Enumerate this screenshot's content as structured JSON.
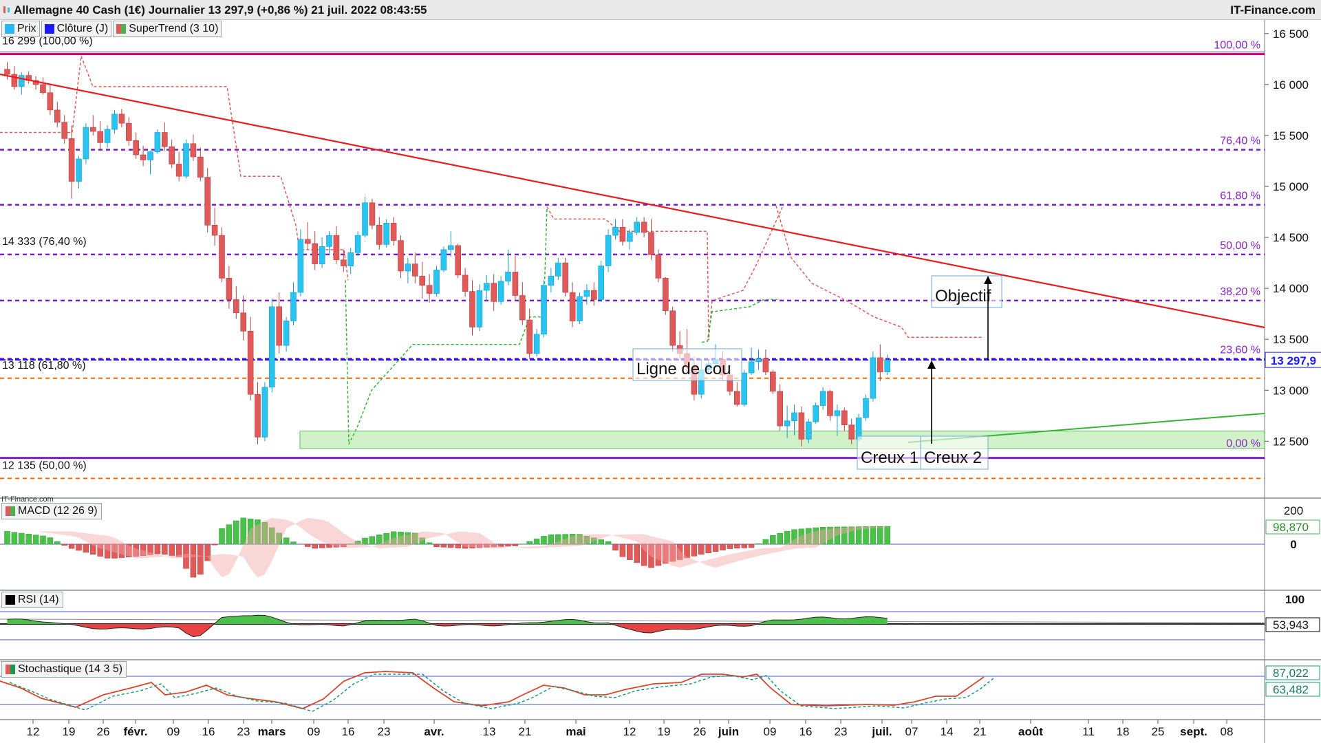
{
  "header": {
    "title": "Allemagne 40 Cash (1€) Journalier 13 297,9 (+0,86 %) 21 juil. 2022 08:43:55",
    "brand": "IT-Finance.com",
    "watermark": "IT-Finance.com"
  },
  "legend": [
    {
      "label": "Prix",
      "color": "#29b6f6"
    },
    {
      "label": "Clôture (J)",
      "color": "#1a1aff"
    },
    {
      "label": "SuperTrend (3 10)",
      "color": "#4caf50"
    }
  ],
  "colors": {
    "up": "#29c4f0",
    "down": "#e05a5a",
    "trend": "#e81c1c",
    "support": "#33b533",
    "fib": "#7a1fc0",
    "orange": "#ff6a00",
    "close": "#1a1aff",
    "magenta": "#d4006a",
    "zone": "#c9f0c0"
  },
  "chart_data": [
    {
      "type": "candlestick",
      "ylim": [
        12050,
        16600
      ],
      "y_ticks": [
        "16 500",
        "16 000",
        "15 500",
        "15 000",
        "14 500",
        "14 000",
        "13 500",
        "13 000",
        "12 500"
      ],
      "x_ticks": [
        "12",
        "19",
        "26",
        "févr.",
        "09",
        "16",
        "23",
        "mars",
        "09",
        "16",
        "23",
        "avr.",
        "13",
        "21",
        "mai",
        "12",
        "19",
        "26",
        "juin",
        "09",
        "16",
        "23",
        "juil.",
        "07",
        "14",
        "21",
        "août",
        "11",
        "18",
        "25",
        "sept.",
        "08"
      ],
      "last_price": "13 297,9",
      "levels": [
        {
          "label_left": "16 299 (100,00 %)",
          "value": 16299
        },
        {
          "label_left": "14 333 (76,40 %)",
          "value": 14333
        },
        {
          "label_left": "13 118 (61,80 %)",
          "value": 13118
        },
        {
          "label_left": "12 135 (50,00 %)",
          "value": 12135
        }
      ],
      "fib_levels": [
        {
          "label": "100,00 %",
          "value": 16299
        },
        {
          "label": "76,40 %",
          "value": 15360
        },
        {
          "label": "61,80 %",
          "value": 14820
        },
        {
          "label": "50,00 %",
          "value": 14333
        },
        {
          "label": "38,20 %",
          "value": 13880
        },
        {
          "label": "23,60 %",
          "value": 13310
        },
        {
          "label": "0,00 %",
          "value": 12390
        }
      ],
      "annotations": [
        "Ligne de cou",
        "Objectif",
        "Creux 1",
        "Creux 2"
      ],
      "ohlc": [
        [
          16150,
          16220,
          16050,
          16100
        ],
        [
          16100,
          16180,
          15950,
          15980
        ],
        [
          15980,
          16120,
          15900,
          16090
        ],
        [
          16090,
          16130,
          16010,
          16040
        ],
        [
          16040,
          16080,
          15950,
          16000
        ],
        [
          16000,
          16070,
          15900,
          15920
        ],
        [
          15920,
          16000,
          15700,
          15750
        ],
        [
          15750,
          15830,
          15580,
          15630
        ],
        [
          15630,
          15700,
          15420,
          15470
        ],
        [
          15470,
          15600,
          14880,
          15050
        ],
        [
          15050,
          15300,
          14980,
          15270
        ],
        [
          15270,
          15620,
          15220,
          15580
        ],
        [
          15580,
          15700,
          15500,
          15540
        ],
        [
          15540,
          15640,
          15350,
          15430
        ],
        [
          15430,
          15600,
          15380,
          15560
        ],
        [
          15560,
          15750,
          15520,
          15710
        ],
        [
          15710,
          15760,
          15580,
          15620
        ],
        [
          15620,
          15680,
          15400,
          15450
        ],
        [
          15450,
          15530,
          15270,
          15310
        ],
        [
          15310,
          15400,
          15200,
          15260
        ],
        [
          15260,
          15350,
          15120,
          15340
        ],
        [
          15340,
          15560,
          15320,
          15530
        ],
        [
          15530,
          15630,
          15350,
          15390
        ],
        [
          15390,
          15460,
          15180,
          15220
        ],
        [
          15220,
          15340,
          15050,
          15100
        ],
        [
          15100,
          15460,
          15080,
          15420
        ],
        [
          15420,
          15510,
          15250,
          15290
        ],
        [
          15290,
          15380,
          15050,
          15090
        ],
        [
          15090,
          15180,
          14550,
          14620
        ],
        [
          14620,
          14790,
          14420,
          14520
        ],
        [
          14520,
          14600,
          14060,
          14100
        ],
        [
          14100,
          14220,
          13800,
          13890
        ],
        [
          13890,
          14020,
          13700,
          13760
        ],
        [
          13760,
          13930,
          13490,
          13580
        ],
        [
          13580,
          13720,
          12900,
          12960
        ],
        [
          12960,
          13080,
          12470,
          12540
        ],
        [
          12540,
          13080,
          12500,
          13030
        ],
        [
          13030,
          13900,
          12980,
          13820
        ],
        [
          13820,
          13960,
          13360,
          13440
        ],
        [
          13440,
          13720,
          13380,
          13680
        ],
        [
          13680,
          14060,
          13640,
          13960
        ],
        [
          13960,
          14580,
          13920,
          14480
        ],
        [
          14480,
          14650,
          14380,
          14440
        ],
        [
          14440,
          14560,
          14180,
          14240
        ],
        [
          14240,
          14500,
          14200,
          14410
        ],
        [
          14410,
          14560,
          14340,
          14520
        ],
        [
          14520,
          14610,
          14240,
          14280
        ],
        [
          14280,
          14380,
          14160,
          14220
        ],
        [
          14220,
          14400,
          14140,
          14350
        ],
        [
          14350,
          14560,
          14320,
          14520
        ],
        [
          14520,
          14900,
          14500,
          14840
        ],
        [
          14840,
          14880,
          14580,
          14620
        ],
        [
          14620,
          14700,
          14380,
          14430
        ],
        [
          14430,
          14680,
          14400,
          14640
        ],
        [
          14640,
          14700,
          14420,
          14470
        ],
        [
          14470,
          14520,
          14100,
          14170
        ],
        [
          14170,
          14300,
          14050,
          14240
        ],
        [
          14240,
          14350,
          14050,
          14120
        ],
        [
          14120,
          14260,
          13900,
          14030
        ],
        [
          14030,
          14140,
          13860,
          13950
        ],
        [
          13950,
          14220,
          13920,
          14180
        ],
        [
          14180,
          14410,
          14160,
          14380
        ],
        [
          14380,
          14560,
          14310,
          14420
        ],
        [
          14420,
          14440,
          14100,
          14130
        ],
        [
          14130,
          14200,
          13920,
          13970
        ],
        [
          13970,
          14080,
          13540,
          13620
        ],
        [
          13620,
          14040,
          13580,
          13980
        ],
        [
          13980,
          14130,
          13880,
          14050
        ],
        [
          14050,
          14140,
          13780,
          13870
        ],
        [
          13870,
          14120,
          13840,
          14070
        ],
        [
          14070,
          14380,
          14030,
          14160
        ],
        [
          14160,
          14320,
          13880,
          13930
        ],
        [
          13930,
          14060,
          13640,
          13690
        ],
        [
          13690,
          13800,
          13310,
          13360
        ],
        [
          13360,
          13600,
          13330,
          13550
        ],
        [
          13550,
          14080,
          13520,
          14030
        ],
        [
          14030,
          14200,
          13960,
          14120
        ],
        [
          14120,
          14300,
          14080,
          14250
        ],
        [
          14250,
          14300,
          13920,
          13960
        ],
        [
          13960,
          14060,
          13620,
          13680
        ],
        [
          13680,
          13960,
          13650,
          13920
        ],
        [
          13920,
          14040,
          13840,
          13980
        ],
        [
          13980,
          14060,
          13830,
          13890
        ],
        [
          13890,
          14270,
          13870,
          14220
        ],
        [
          14220,
          14580,
          14160,
          14520
        ],
        [
          14520,
          14680,
          14480,
          14600
        ],
        [
          14600,
          14680,
          14420,
          14460
        ],
        [
          14460,
          14580,
          14380,
          14550
        ],
        [
          14550,
          14700,
          14520,
          14650
        ],
        [
          14650,
          14700,
          14500,
          14550
        ],
        [
          14550,
          14680,
          14280,
          14330
        ],
        [
          14330,
          14380,
          14060,
          14100
        ],
        [
          14100,
          14110,
          13740,
          13780
        ],
        [
          13780,
          13820,
          13380,
          13440
        ],
        [
          13440,
          13580,
          13300,
          13360
        ],
        [
          13360,
          13600,
          13180,
          13230
        ],
        [
          13230,
          13330,
          12900,
          12960
        ],
        [
          12960,
          13300,
          12920,
          13200
        ],
        [
          13200,
          13300,
          13160,
          13260
        ],
        [
          13260,
          13450,
          13220,
          13300
        ],
        [
          13300,
          13380,
          13100,
          13150
        ],
        [
          13150,
          13250,
          12950,
          12990
        ],
        [
          12990,
          13080,
          12840,
          12860
        ],
        [
          12860,
          13200,
          12840,
          13170
        ],
        [
          13170,
          13420,
          13150,
          13280
        ],
        [
          13280,
          13400,
          13200,
          13310
        ],
        [
          13310,
          13400,
          13150,
          13180
        ],
        [
          13180,
          13200,
          12960,
          12990
        ],
        [
          12990,
          13060,
          12600,
          12650
        ],
        [
          12650,
          12850,
          12530,
          12700
        ],
        [
          12700,
          12860,
          12560,
          12780
        ],
        [
          12780,
          12840,
          12450,
          12520
        ],
        [
          12520,
          12720,
          12480,
          12690
        ],
        [
          12690,
          12880,
          12670,
          12850
        ],
        [
          12850,
          13030,
          12810,
          12990
        ],
        [
          12990,
          13000,
          12700,
          12750
        ],
        [
          12750,
          12860,
          12550,
          12800
        ],
        [
          12800,
          12830,
          12600,
          12660
        ],
        [
          12660,
          12720,
          12470,
          12520
        ],
        [
          12520,
          12770,
          12500,
          12730
        ],
        [
          12730,
          12960,
          12700,
          12920
        ],
        [
          12920,
          13380,
          12890,
          13320
        ],
        [
          13320,
          13450,
          13090,
          13180
        ],
        [
          13180,
          13350,
          13150,
          13298
        ]
      ]
    },
    {
      "type": "bar",
      "title": "MACD (12 26 9)",
      "y_ticks": [
        "200",
        "0"
      ],
      "last_value": "98,870"
    },
    {
      "type": "line",
      "title": "RSI (14)",
      "y_ticks": [
        "100"
      ],
      "last_value": "53,943"
    },
    {
      "type": "line",
      "title": "Stochastique (14 3 5)",
      "last_values": [
        "87,022",
        "63,482"
      ]
    }
  ]
}
